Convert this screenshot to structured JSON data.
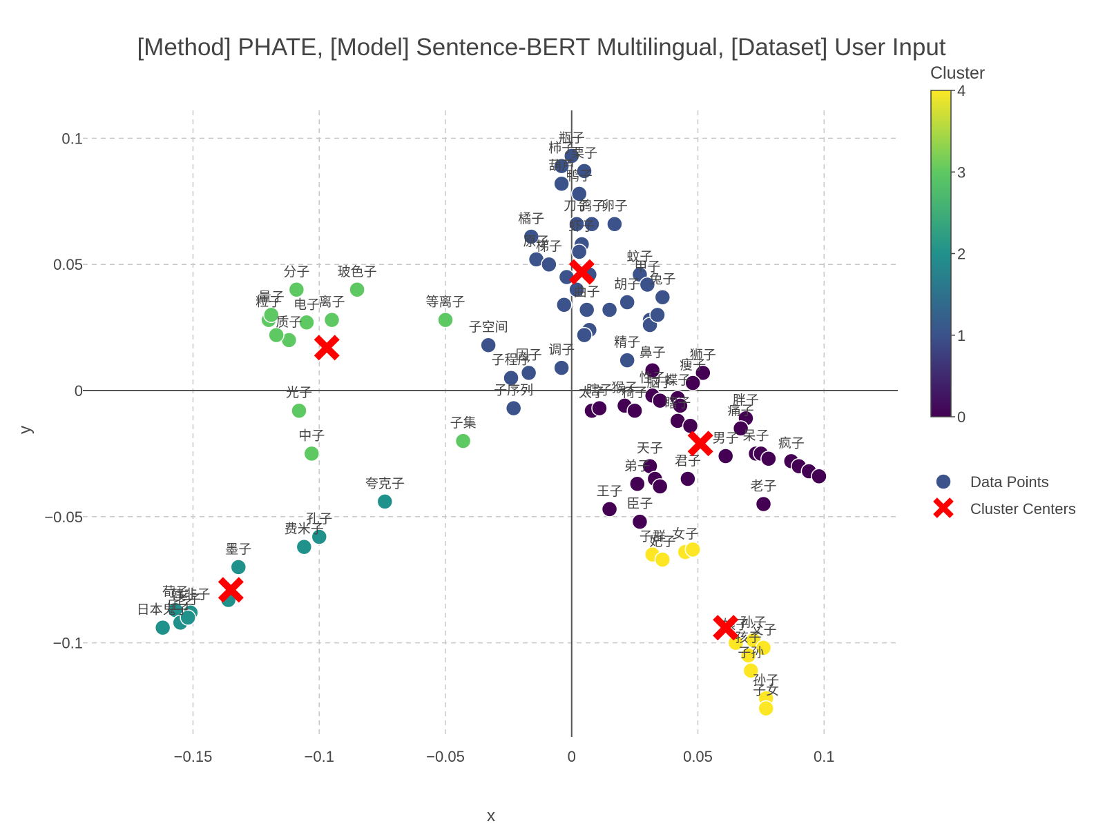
{
  "chart_data": {
    "type": "scatter",
    "title": "[Method] PHATE, [Model] Sentence-BERT Multilingual, [Dataset] User Input",
    "xlabel": "x",
    "ylabel": "y",
    "xlim": [
      -0.175,
      0.128
    ],
    "ylim": [
      -0.137,
      0.11
    ],
    "x_ticks": [
      -0.15,
      -0.1,
      -0.05,
      0,
      0.05,
      0.1
    ],
    "x_tick_labels": [
      "−0.15",
      "−0.1",
      "−0.05",
      "0",
      "0.05",
      "0.1"
    ],
    "y_ticks": [
      -0.1,
      -0.05,
      0,
      0.05,
      0.1
    ],
    "y_tick_labels": [
      "−0.1",
      "−0.05",
      "0",
      "0.05",
      "0.1"
    ],
    "grid": true,
    "colorbar": {
      "title": "Cluster",
      "min": 0,
      "max": 4,
      "ticks": [
        0,
        1,
        2,
        3,
        4
      ],
      "tick_labels": [
        "0",
        "1",
        "2",
        "3",
        "4"
      ],
      "colorscale": [
        "#440154",
        "#3b528b",
        "#21918c",
        "#5ec962",
        "#fde725"
      ]
    },
    "legend": {
      "placement": "right",
      "items": [
        {
          "label": "Data Points",
          "marker": "circle",
          "color": "#3b528b"
        },
        {
          "label": "Cluster Centers",
          "marker": "x",
          "color": "#ff0000"
        }
      ]
    },
    "series": [
      {
        "name": "Data Points",
        "points": [
          {
            "label": "分子",
            "x": -0.109,
            "y": 0.04,
            "c": 3
          },
          {
            "label": "玻色子",
            "x": -0.085,
            "y": 0.04,
            "c": 3
          },
          {
            "label": "粒子",
            "x": -0.12,
            "y": 0.028,
            "c": 3
          },
          {
            "label": "量子",
            "x": -0.119,
            "y": 0.03,
            "c": 3
          },
          {
            "label": "电子",
            "x": -0.105,
            "y": 0.027,
            "c": 3
          },
          {
            "label": "离子",
            "x": -0.095,
            "y": 0.028,
            "c": 3
          },
          {
            "label": "质子",
            "x": -0.112,
            "y": 0.02,
            "c": 3
          },
          {
            "label": "",
            "x": -0.117,
            "y": 0.022,
            "c": 3
          },
          {
            "label": "等离子",
            "x": -0.05,
            "y": 0.028,
            "c": 3
          },
          {
            "label": "光子",
            "x": -0.108,
            "y": -0.008,
            "c": 3
          },
          {
            "label": "中子",
            "x": -0.103,
            "y": -0.025,
            "c": 3
          },
          {
            "label": "子集",
            "x": -0.043,
            "y": -0.02,
            "c": 3
          },
          {
            "label": "子空间",
            "x": -0.033,
            "y": 0.018,
            "c": 1
          },
          {
            "label": "子程序",
            "x": -0.024,
            "y": 0.005,
            "c": 1
          },
          {
            "label": "因子",
            "x": -0.017,
            "y": 0.007,
            "c": 1
          },
          {
            "label": "调子",
            "x": -0.004,
            "y": 0.009,
            "c": 1
          },
          {
            "label": "子序列",
            "x": -0.023,
            "y": -0.007,
            "c": 1
          },
          {
            "label": "夸克子",
            "x": -0.074,
            "y": -0.044,
            "c": 2
          },
          {
            "label": "孔子",
            "x": -0.1,
            "y": -0.058,
            "c": 2
          },
          {
            "label": "费米子",
            "x": -0.106,
            "y": -0.062,
            "c": 2
          },
          {
            "label": "墨子",
            "x": -0.132,
            "y": -0.07,
            "c": 2
          },
          {
            "label": "",
            "x": -0.136,
            "y": -0.083,
            "c": 2
          },
          {
            "label": "韩非子",
            "x": -0.151,
            "y": -0.088,
            "c": 2
          },
          {
            "label": "荀子",
            "x": -0.157,
            "y": -0.087,
            "c": 2
          },
          {
            "label": "庄子",
            "x": -0.155,
            "y": -0.092,
            "c": 2
          },
          {
            "label": "老子",
            "x": -0.152,
            "y": -0.09,
            "c": 2
          },
          {
            "label": "日本鬼子",
            "x": -0.162,
            "y": -0.094,
            "c": 2
          },
          {
            "label": "瓶子",
            "x": 0,
            "y": 0.093,
            "c": 1
          },
          {
            "label": "柿子",
            "x": -0.004,
            "y": 0.089,
            "c": 1
          },
          {
            "label": "栗子",
            "x": 0.005,
            "y": 0.087,
            "c": 1
          },
          {
            "label": "葫芦",
            "x": -0.004,
            "y": 0.082,
            "c": 1
          },
          {
            "label": "鸭子",
            "x": 0.003,
            "y": 0.078,
            "c": 1
          },
          {
            "label": "刀子",
            "x": 0.002,
            "y": 0.066,
            "c": 1
          },
          {
            "label": "鸽子",
            "x": 0.008,
            "y": 0.066,
            "c": 1
          },
          {
            "label": "卵子",
            "x": 0.017,
            "y": 0.066,
            "c": 1
          },
          {
            "label": "橘子",
            "x": -0.016,
            "y": 0.061,
            "c": 1
          },
          {
            "label": "虾子",
            "x": 0.004,
            "y": 0.058,
            "c": 1
          },
          {
            "label": "原子",
            "x": -0.014,
            "y": 0.052,
            "c": 1
          },
          {
            "label": "梯子",
            "x": -0.009,
            "y": 0.05,
            "c": 1
          },
          {
            "label": "",
            "x": 0.003,
            "y": 0.055,
            "c": 1
          },
          {
            "label": "",
            "x": -0.002,
            "y": 0.045,
            "c": 1
          },
          {
            "label": "",
            "x": 0.002,
            "y": 0.04,
            "c": 1
          },
          {
            "label": "",
            "x": 0.007,
            "y": 0.046,
            "c": 1
          },
          {
            "label": "",
            "x": -0.003,
            "y": 0.034,
            "c": 1
          },
          {
            "label": "曲子",
            "x": 0.006,
            "y": 0.032,
            "c": 1
          },
          {
            "label": "",
            "x": 0.007,
            "y": 0.024,
            "c": 1
          },
          {
            "label": "",
            "x": 0.005,
            "y": 0.022,
            "c": 1
          },
          {
            "label": "",
            "x": 0.015,
            "y": 0.032,
            "c": 1
          },
          {
            "label": "胡子",
            "x": 0.022,
            "y": 0.035,
            "c": 1
          },
          {
            "label": "蚊子",
            "x": 0.027,
            "y": 0.046,
            "c": 1
          },
          {
            "label": "甲子",
            "x": 0.03,
            "y": 0.042,
            "c": 1
          },
          {
            "label": "兔子",
            "x": 0.036,
            "y": 0.037,
            "c": 1
          },
          {
            "label": "",
            "x": 0.031,
            "y": 0.028,
            "c": 1
          },
          {
            "label": "",
            "x": 0.031,
            "y": 0.026,
            "c": 1
          },
          {
            "label": "",
            "x": 0.034,
            "y": 0.03,
            "c": 1
          },
          {
            "label": "精子",
            "x": 0.022,
            "y": 0.012,
            "c": 1
          },
          {
            "label": "鼻子",
            "x": 0.032,
            "y": 0.008,
            "c": 0
          },
          {
            "label": "狮子",
            "x": 0.052,
            "y": 0.007,
            "c": 0
          },
          {
            "label": "瘦子",
            "x": 0.048,
            "y": 0.003,
            "c": 0
          },
          {
            "label": "性子",
            "x": 0.032,
            "y": -0.002,
            "c": 0
          },
          {
            "label": "脑子",
            "x": 0.035,
            "y": -0.004,
            "c": 0
          },
          {
            "label": "蝶子",
            "x": 0.042,
            "y": -0.003,
            "c": 0
          },
          {
            "label": "",
            "x": 0.043,
            "y": -0.006,
            "c": 0
          },
          {
            "label": "太子",
            "x": 0.008,
            "y": -0.008,
            "c": 0
          },
          {
            "label": "瞎子",
            "x": 0.011,
            "y": -0.007,
            "c": 0
          },
          {
            "label": "猴子",
            "x": 0.021,
            "y": -0.006,
            "c": 0
          },
          {
            "label": "椅子",
            "x": 0.025,
            "y": -0.008,
            "c": 0
          },
          {
            "label": "瞎子",
            "x": 0.042,
            "y": -0.012,
            "c": 0
          },
          {
            "label": "",
            "x": 0.047,
            "y": -0.014,
            "c": 0
          },
          {
            "label": "胖子",
            "x": 0.069,
            "y": -0.011,
            "c": 0
          },
          {
            "label": "痛子",
            "x": 0.067,
            "y": -0.015,
            "c": 0
          },
          {
            "label": "男子",
            "x": 0.061,
            "y": -0.026,
            "c": 0
          },
          {
            "label": "呆子",
            "x": 0.073,
            "y": -0.025,
            "c": 0
          },
          {
            "label": "",
            "x": 0.075,
            "y": -0.025,
            "c": 0
          },
          {
            "label": "",
            "x": 0.078,
            "y": -0.027,
            "c": 0
          },
          {
            "label": "疯子",
            "x": 0.087,
            "y": -0.028,
            "c": 0
          },
          {
            "label": "",
            "x": 0.09,
            "y": -0.03,
            "c": 0
          },
          {
            "label": "",
            "x": 0.094,
            "y": -0.032,
            "c": 0
          },
          {
            "label": "",
            "x": 0.098,
            "y": -0.034,
            "c": 0
          },
          {
            "label": "天子",
            "x": 0.031,
            "y": -0.03,
            "c": 0
          },
          {
            "label": "弟子",
            "x": 0.026,
            "y": -0.037,
            "c": 0
          },
          {
            "label": "君子",
            "x": 0.046,
            "y": -0.035,
            "c": 0
          },
          {
            "label": "",
            "x": 0.033,
            "y": -0.035,
            "c": 0
          },
          {
            "label": "",
            "x": 0.035,
            "y": -0.038,
            "c": 0
          },
          {
            "label": "王子",
            "x": 0.015,
            "y": -0.047,
            "c": 0
          },
          {
            "label": "臣子",
            "x": 0.027,
            "y": -0.052,
            "c": 0
          },
          {
            "label": "老子",
            "x": 0.076,
            "y": -0.045,
            "c": 0
          },
          {
            "label": "子群",
            "x": 0.032,
            "y": -0.065,
            "c": 4
          },
          {
            "label": "妃子",
            "x": 0.036,
            "y": -0.067,
            "c": 4
          },
          {
            "label": "女子",
            "x": 0.045,
            "y": -0.064,
            "c": 4
          },
          {
            "label": "",
            "x": 0.048,
            "y": -0.063,
            "c": 4
          },
          {
            "label": "娘子",
            "x": 0.065,
            "y": -0.1,
            "c": 4
          },
          {
            "label": "孙子",
            "x": 0.072,
            "y": -0.099,
            "c": 4
          },
          {
            "label": "父子",
            "x": 0.076,
            "y": -0.102,
            "c": 4
          },
          {
            "label": "孩子",
            "x": 0.07,
            "y": -0.105,
            "c": 4
          },
          {
            "label": "子孙",
            "x": 0.071,
            "y": -0.111,
            "c": 4
          },
          {
            "label": "孙子",
            "x": 0.077,
            "y": -0.122,
            "c": 4
          },
          {
            "label": "子女",
            "x": 0.077,
            "y": -0.126,
            "c": 4
          }
        ]
      },
      {
        "name": "Cluster Centers",
        "points": [
          {
            "x": -0.097,
            "y": 0.017
          },
          {
            "x": 0.004,
            "y": 0.047
          },
          {
            "x": 0.051,
            "y": -0.021
          },
          {
            "x": -0.135,
            "y": -0.079
          },
          {
            "x": 0.061,
            "y": -0.094
          }
        ]
      }
    ]
  }
}
